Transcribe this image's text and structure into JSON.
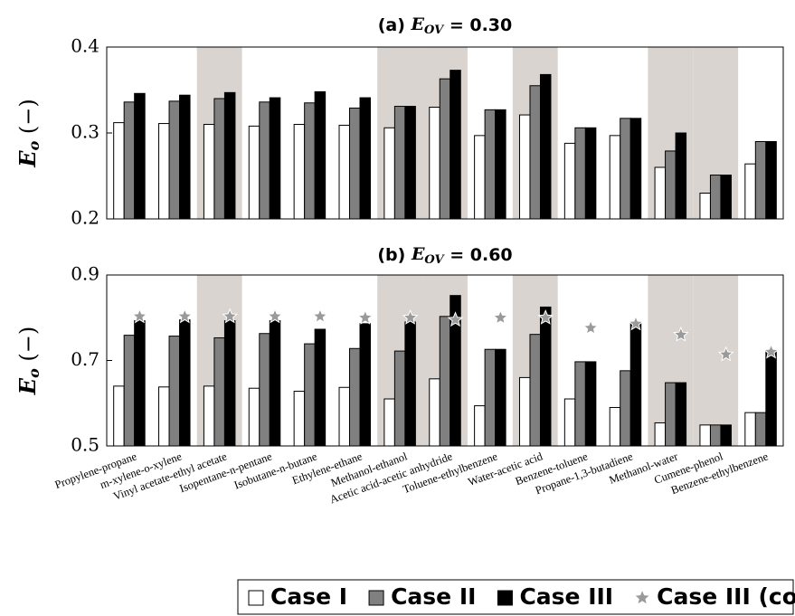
{
  "chart_data": [
    {
      "type": "bar",
      "title": [
        "(a) ",
        "E",
        "OV",
        " = 0.30"
      ],
      "ylabel": [
        "E",
        "o",
        " (−)"
      ],
      "ylim": [
        0.2,
        0.4
      ],
      "yticks": [
        0.2,
        0.3,
        0.4
      ],
      "shaded": [
        false,
        false,
        true,
        false,
        false,
        false,
        true,
        true,
        false,
        true,
        false,
        false,
        true,
        true,
        false
      ],
      "shade_color": "#d9d4cf",
      "series": [
        {
          "color": "#ffffff",
          "values": [
            0.312,
            0.311,
            0.31,
            0.308,
            0.31,
            0.309,
            0.306,
            0.33,
            0.297,
            0.321,
            0.288,
            0.297,
            0.26,
            0.23,
            0.264
          ]
        },
        {
          "color": "#808080",
          "values": [
            0.336,
            0.337,
            0.34,
            0.336,
            0.335,
            0.329,
            0.331,
            0.363,
            0.327,
            0.355,
            0.306,
            0.317,
            0.279,
            0.251,
            0.29
          ]
        },
        {
          "color": "#000000",
          "values": [
            0.346,
            0.344,
            0.347,
            0.341,
            0.348,
            0.341,
            0.331,
            0.373,
            0.327,
            0.368,
            0.306,
            0.317,
            0.3,
            0.251,
            0.29
          ]
        }
      ]
    },
    {
      "type": "bar",
      "title": [
        "(b) ",
        "E",
        "OV",
        " = 0.60"
      ],
      "ylabel": [
        "E",
        "o",
        " (−)"
      ],
      "ylim": [
        0.5,
        0.9
      ],
      "yticks": [
        0.5,
        0.7,
        0.9
      ],
      "shaded": [
        false,
        false,
        true,
        false,
        false,
        false,
        true,
        true,
        false,
        true,
        false,
        false,
        true,
        true,
        false
      ],
      "shade_color": "#d9d4cf",
      "categories": [
        "Propylene-propane",
        "m-xylene-o-xylene",
        "Vinyl acetate-ethyl acetate",
        "Isopentane-n-pentane",
        "Isobutane-n-butane",
        "Ethylene-ethane",
        "Methanol-ethanol",
        "Acetic acid-acetic anhydride",
        "Toluene-ethylbenzene",
        "Water-acetic acid",
        "Benzene-toluene",
        "Propane-1,3-butadiene",
        "Methanol-water",
        "Cumene-phenol",
        "Benzene-ethylbenzene"
      ],
      "series": [
        {
          "name": "Case I",
          "color": "#ffffff",
          "values": [
            0.64,
            0.638,
            0.64,
            0.635,
            0.628,
            0.637,
            0.61,
            0.657,
            0.594,
            0.66,
            0.61,
            0.59,
            0.554,
            0.549,
            0.578
          ]
        },
        {
          "name": "Case II",
          "color": "#808080",
          "values": [
            0.759,
            0.757,
            0.753,
            0.763,
            0.739,
            0.728,
            0.722,
            0.803,
            0.726,
            0.761,
            0.697,
            0.676,
            0.648,
            0.549,
            0.578
          ]
        },
        {
          "name": "Case III",
          "color": "#000000",
          "values": [
            0.793,
            0.795,
            0.793,
            0.793,
            0.773,
            0.786,
            0.79,
            0.852,
            0.726,
            0.825,
            0.697,
            0.79,
            0.648,
            0.549,
            0.72
          ]
        },
        {
          "name": "Case III (const. αrel)",
          "color": "#9a9a9a",
          "marker": "star",
          "values": [
            0.803,
            0.803,
            0.803,
            0.803,
            0.803,
            0.8,
            0.8,
            0.795,
            0.8,
            0.8,
            0.776,
            0.786,
            0.76,
            0.714,
            0.72
          ]
        }
      ]
    }
  ]
}
